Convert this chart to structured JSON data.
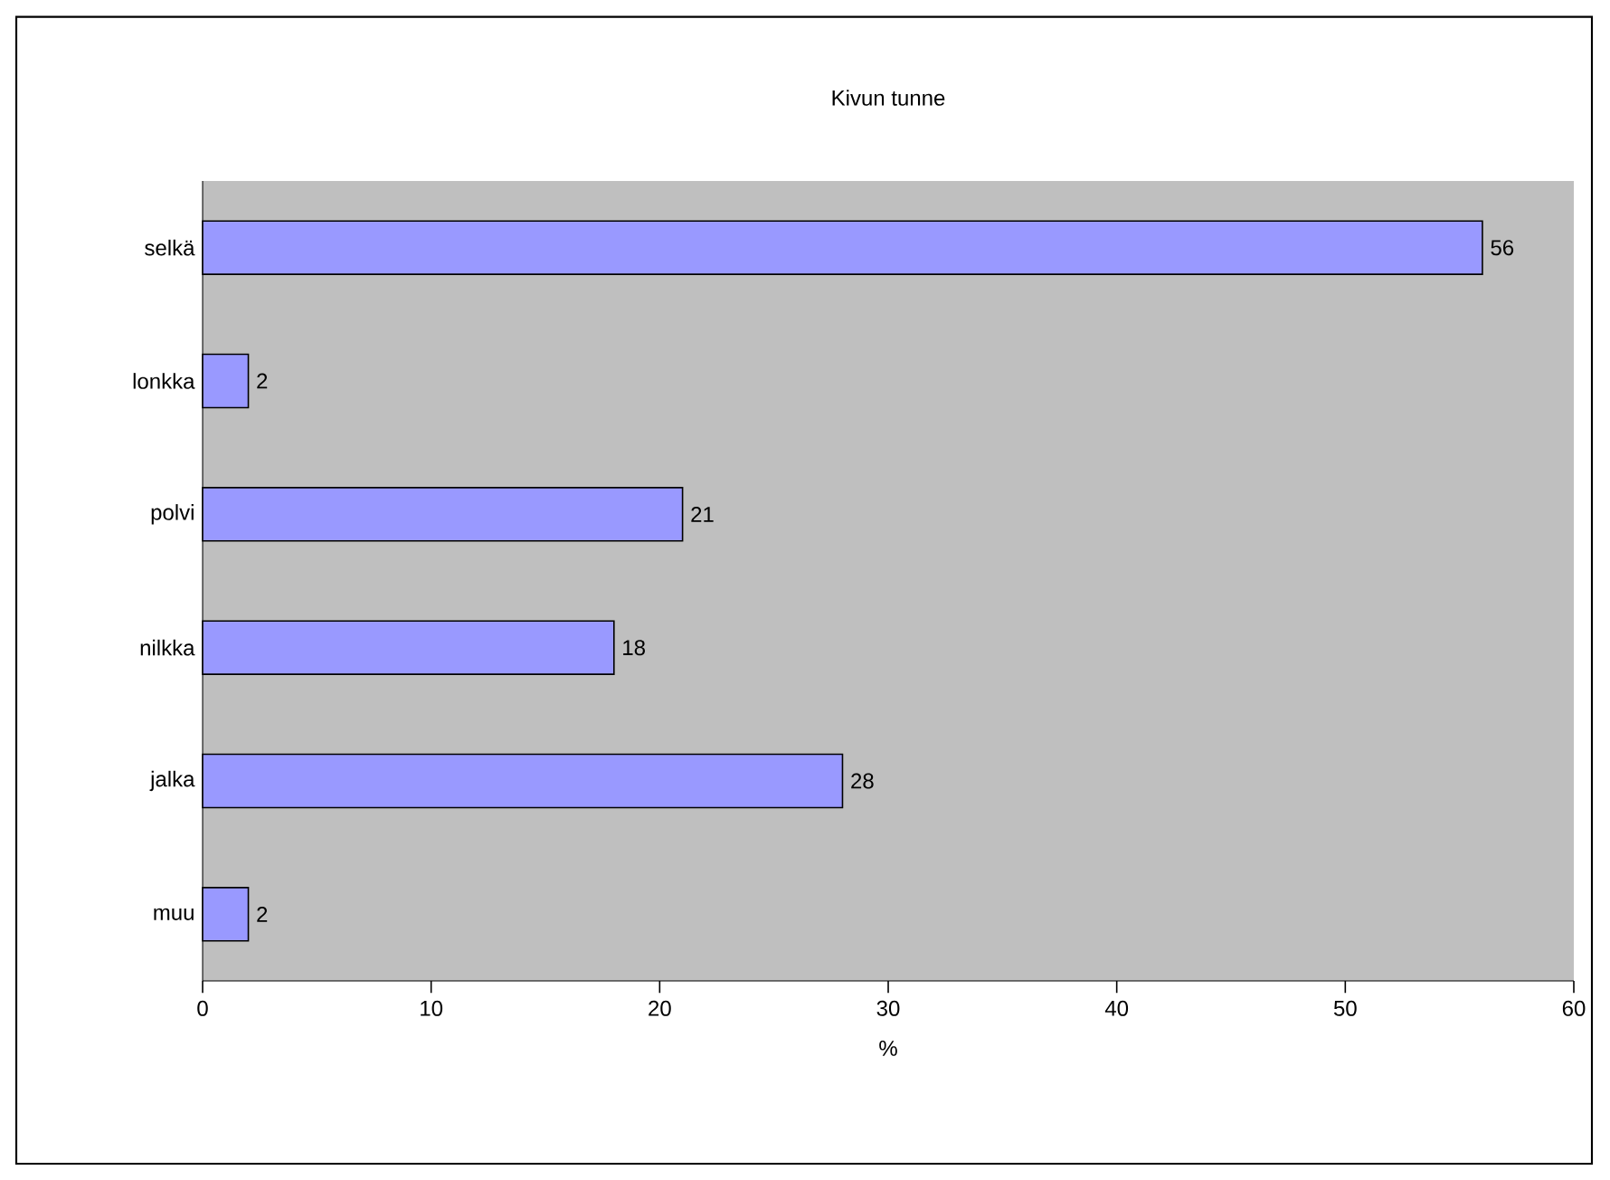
{
  "chart_data": {
    "type": "bar",
    "orientation": "horizontal",
    "title": "Kivun tunne",
    "xlabel": "%",
    "categories": [
      "selkä",
      "lonkka",
      "polvi",
      "nilkka",
      "jalka",
      "muu"
    ],
    "values": [
      56,
      2,
      21,
      18,
      28,
      2
    ],
    "color": "#9999ff",
    "xlim": [
      0,
      60
    ],
    "xticks": [
      0,
      10,
      20,
      30,
      40,
      50,
      60
    ],
    "data_labels": true,
    "grid": false
  }
}
